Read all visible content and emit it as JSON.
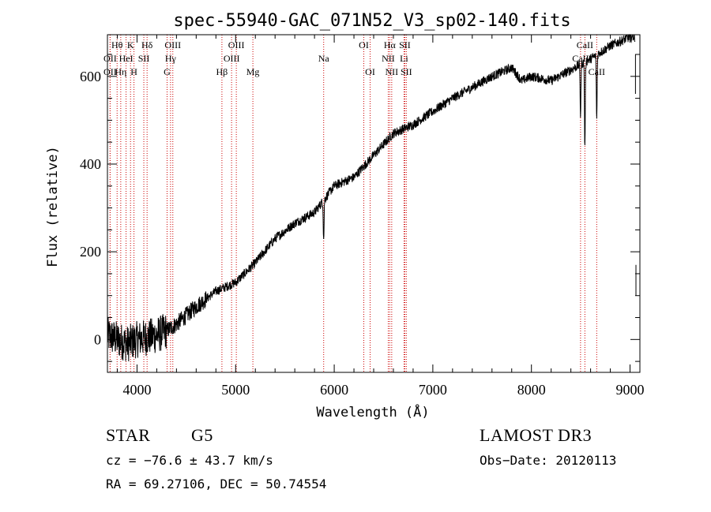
{
  "chart_data": {
    "type": "line",
    "title": "spec-55940-GAC_071N52_V3_sp02-140.fits",
    "xlabel": "Wavelength (Å)",
    "ylabel": "Flux (relative)",
    "xlim": [
      3700,
      9100
    ],
    "ylim": [
      -75,
      695
    ],
    "x_ticks": [
      4000,
      5000,
      6000,
      7000,
      8000,
      9000
    ],
    "y_ticks": [
      0,
      200,
      400,
      600
    ],
    "x_tick_labels": [
      "4000",
      "5000",
      "6000",
      "7000",
      "8000",
      "9000"
    ],
    "y_tick_labels": [
      "0",
      "200",
      "400",
      "600"
    ],
    "line_color": "#000000",
    "marker_color": "#cc0000",
    "spectrum_anchors": {
      "x": [
        3700,
        3800,
        3900,
        4000,
        4100,
        4200,
        4300,
        4400,
        4600,
        4800,
        5000,
        5200,
        5400,
        5600,
        5800,
        6000,
        6200,
        6400,
        6600,
        6800,
        7000,
        7200,
        7400,
        7600,
        7800,
        7900,
        8000,
        8200,
        8400,
        8600,
        8800,
        9000,
        9050
      ],
      "y": [
        10,
        0,
        -10,
        0,
        5,
        10,
        20,
        35,
        75,
        110,
        130,
        175,
        230,
        265,
        290,
        350,
        370,
        420,
        470,
        490,
        520,
        550,
        575,
        600,
        620,
        590,
        600,
        590,
        615,
        640,
        670,
        690,
        690
      ]
    },
    "absorption_dips": [
      {
        "x": 5893,
        "depth": 90
      },
      {
        "x": 8498,
        "depth": 120
      },
      {
        "x": 8542,
        "depth": 200
      },
      {
        "x": 8662,
        "depth": 150
      }
    ],
    "spectral_lines": [
      {
        "label": "Hθ",
        "x": 3798,
        "row": 0
      },
      {
        "label": "OII",
        "x": 3727,
        "row": 1
      },
      {
        "label": "OII",
        "x": 3727,
        "row": 2
      },
      {
        "label": "HeI",
        "x": 3889,
        "row": 1
      },
      {
        "label": "Hη",
        "x": 3835,
        "row": 2
      },
      {
        "label": "K",
        "x": 3934,
        "row": 0
      },
      {
        "label": "H",
        "x": 3969,
        "row": 2
      },
      {
        "label": "SII",
        "x": 4069,
        "row": 1
      },
      {
        "label": "Hδ",
        "x": 4102,
        "row": 0
      },
      {
        "label": "OIII",
        "x": 4363,
        "row": 0
      },
      {
        "label": "Hγ",
        "x": 4340,
        "row": 1
      },
      {
        "label": "G",
        "x": 4305,
        "row": 2
      },
      {
        "label": "Hβ",
        "x": 4861,
        "row": 2
      },
      {
        "label": "OIII",
        "x": 5007,
        "row": 0
      },
      {
        "label": "OIII",
        "x": 4959,
        "row": 1
      },
      {
        "label": "Mg",
        "x": 5175,
        "row": 2
      },
      {
        "label": "Na",
        "x": 5893,
        "row": 1
      },
      {
        "label": "OI",
        "x": 6300,
        "row": 0
      },
      {
        "label": "OI",
        "x": 6364,
        "row": 2
      },
      {
        "label": "Hα",
        "x": 6563,
        "row": 0
      },
      {
        "label": "NII",
        "x": 6548,
        "row": 1
      },
      {
        "label": "NII",
        "x": 6583,
        "row": 2
      },
      {
        "label": "SII",
        "x": 6716,
        "row": 0
      },
      {
        "label": "Li",
        "x": 6708,
        "row": 1
      },
      {
        "label": "SII",
        "x": 6731,
        "row": 2
      },
      {
        "label": "CaII",
        "x": 8542,
        "row": 0
      },
      {
        "label": "CaII",
        "x": 8498,
        "row": 1
      },
      {
        "label": "CaII",
        "x": 8662,
        "row": 2
      }
    ]
  },
  "info": {
    "object_class": "STAR",
    "subclass": "G5",
    "survey": "LAMOST DR3",
    "cz": "cz = −76.6 ± 43.7 km/s",
    "obs_date": "Obs−Date: 20120113",
    "coords": "RA =  69.27106, DEC =  50.74554"
  }
}
